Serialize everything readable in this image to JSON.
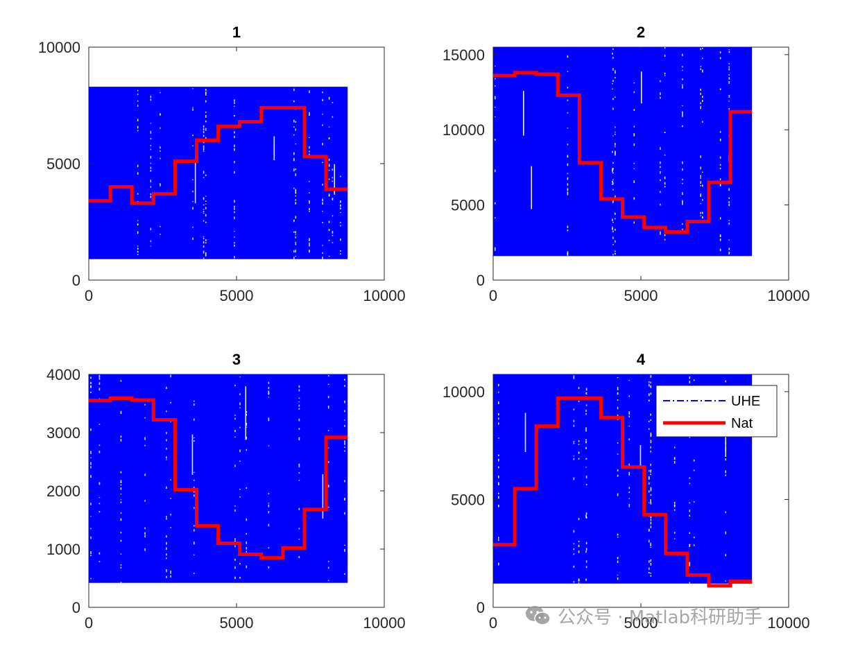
{
  "colors": {
    "uhe": "#0000ff",
    "nat": "#ff0000",
    "axis": "#262626",
    "background": "#ffffff"
  },
  "watermark": {
    "text": "公众号 · Matlab科研助手",
    "icon": "wechat-icon"
  },
  "chart_data": [
    {
      "type": "line",
      "title": "1",
      "xlim": [
        0,
        10000
      ],
      "ylim": [
        0,
        10000
      ],
      "xticks": [
        0,
        5000,
        10000
      ],
      "yticks": [
        0,
        5000,
        10000
      ],
      "xtick_labels": [
        "0",
        "5000",
        "10000"
      ],
      "ytick_labels": [
        "0",
        "5000",
        "10000"
      ],
      "series": [
        {
          "style": "dash-dot dense band",
          "band": {
            "x": [
              0,
              8760
            ],
            "y": [
              900,
              8300
            ]
          }
        },
        {
          "style": "solid step",
          "x": [
            0,
            730,
            1460,
            2190,
            2920,
            3650,
            4380,
            5110,
            5840,
            6570,
            7300,
            8030,
            8760
          ],
          "y": [
            3400,
            4000,
            3300,
            3700,
            5100,
            6000,
            6600,
            6800,
            7400,
            7400,
            5300,
            3900,
            3900
          ]
        }
      ]
    },
    {
      "type": "line",
      "title": "2",
      "xlim": [
        0,
        10000
      ],
      "ylim": [
        0,
        15500
      ],
      "xticks": [
        0,
        5000,
        10000
      ],
      "yticks": [
        0,
        5000,
        10000,
        15000
      ],
      "xtick_labels": [
        "0",
        "5000",
        "10000"
      ],
      "ytick_labels": [
        "0",
        "5000",
        "10000",
        "15000"
      ],
      "series": [
        {
          "style": "dash-dot dense band",
          "band": {
            "x": [
              0,
              8760
            ],
            "y": [
              1600,
              15500
            ]
          }
        },
        {
          "style": "solid step",
          "x": [
            0,
            730,
            1460,
            2190,
            2920,
            3650,
            4380,
            5110,
            5840,
            6570,
            7300,
            8030,
            8760
          ],
          "y": [
            13600,
            13800,
            13700,
            12300,
            7800,
            5400,
            4200,
            3500,
            3200,
            3900,
            6500,
            11200,
            11200
          ]
        }
      ]
    },
    {
      "type": "line",
      "title": "3",
      "xlim": [
        0,
        10000
      ],
      "ylim": [
        0,
        4000
      ],
      "xticks": [
        0,
        5000,
        10000
      ],
      "yticks": [
        0,
        1000,
        2000,
        3000,
        4000
      ],
      "xtick_labels": [
        "0",
        "5000",
        "10000"
      ],
      "ytick_labels": [
        "0",
        "1000",
        "2000",
        "3000",
        "4000"
      ],
      "series": [
        {
          "style": "dash-dot dense band",
          "band": {
            "x": [
              0,
              8760
            ],
            "y": [
              420,
              4000
            ]
          }
        },
        {
          "style": "solid step",
          "x": [
            0,
            730,
            1460,
            2190,
            2920,
            3650,
            4380,
            5110,
            5840,
            6570,
            7300,
            8030,
            8760
          ],
          "y": [
            3550,
            3590,
            3560,
            3220,
            2020,
            1400,
            1100,
            910,
            850,
            1020,
            1680,
            2920,
            2920
          ]
        }
      ]
    },
    {
      "type": "line",
      "title": "4",
      "xlim": [
        0,
        10000
      ],
      "ylim": [
        0,
        10800
      ],
      "xticks": [
        0,
        5000,
        10000
      ],
      "yticks": [
        0,
        5000,
        10000
      ],
      "xtick_labels": [
        "0",
        "5000",
        "10000"
      ],
      "ytick_labels": [
        "0",
        "5000",
        "10000"
      ],
      "legend": {
        "position": "top-right",
        "entries": [
          "UHE",
          "Nat"
        ]
      },
      "series": [
        {
          "name": "UHE",
          "style": "dash-dot dense band",
          "band": {
            "x": [
              0,
              8760
            ],
            "y": [
              1100,
              10800
            ]
          }
        },
        {
          "name": "Nat",
          "style": "solid step",
          "x": [
            0,
            730,
            1460,
            2190,
            2920,
            3650,
            4380,
            5110,
            5840,
            6570,
            7300,
            8030,
            8760
          ],
          "y": [
            2900,
            5500,
            8400,
            9700,
            9700,
            8800,
            6500,
            4300,
            2500,
            1500,
            1000,
            1200,
            1200
          ]
        }
      ]
    }
  ]
}
